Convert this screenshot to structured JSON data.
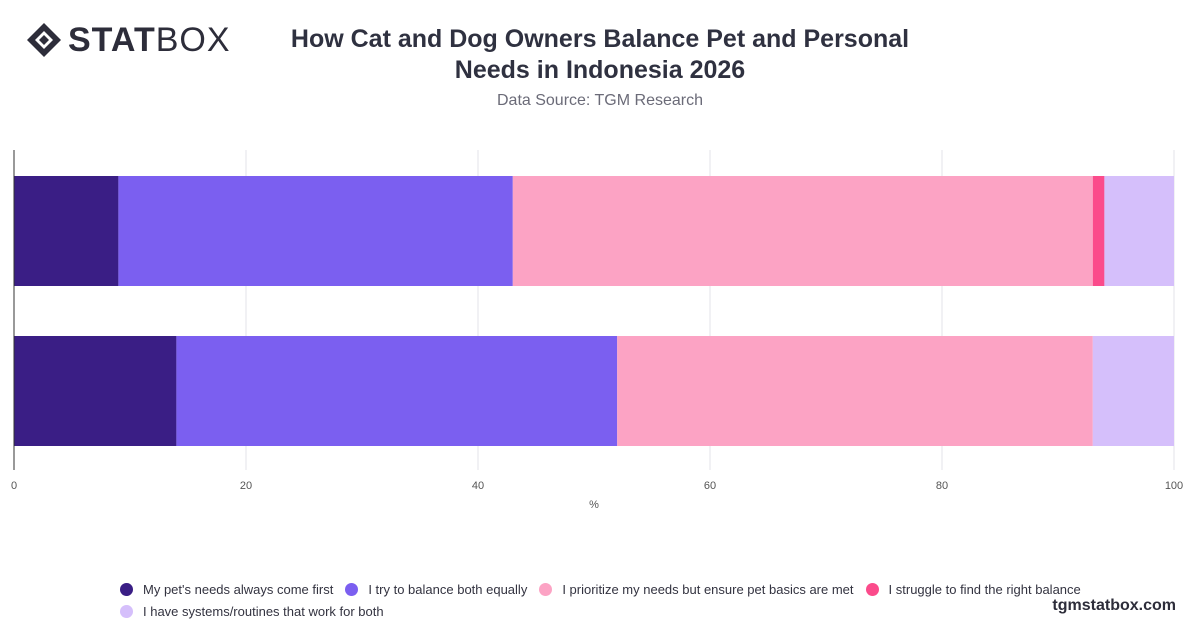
{
  "brand": {
    "logo_bold": "STAT",
    "logo_light": "BOX",
    "watermark": "tgmstatbox.com"
  },
  "header": {
    "title": "How Cat and Dog Owners Balance Pet and Personal Needs in Indonesia 2026",
    "subtitle": "Data Source: TGM Research"
  },
  "chart_data": {
    "type": "bar",
    "orientation": "horizontal",
    "stacked": true,
    "title": "How Cat and Dog Owners Balance Pet and Personal Needs in Indonesia 2026",
    "xlabel": "%",
    "ylabel": "",
    "xlim": [
      0,
      100
    ],
    "x_ticks": [
      0,
      20,
      40,
      60,
      80,
      100
    ],
    "grid": true,
    "legend_position": "bottom",
    "categories": [
      "",
      ""
    ],
    "series": [
      {
        "name": "My pet's needs always come first",
        "color": "#3a1e85",
        "values": [
          9,
          14
        ]
      },
      {
        "name": "I try to balance both equally",
        "color": "#7b5ff0",
        "values": [
          34,
          38
        ]
      },
      {
        "name": "I prioritize my needs but ensure pet basics are met",
        "color": "#fca3c4",
        "values": [
          50,
          41
        ]
      },
      {
        "name": "I struggle to find the right balance",
        "color": "#fb4b8b",
        "values": [
          1,
          0
        ]
      },
      {
        "name": "I have systems/routines that work for both",
        "color": "#d5bffb",
        "values": [
          6,
          7
        ]
      }
    ]
  }
}
